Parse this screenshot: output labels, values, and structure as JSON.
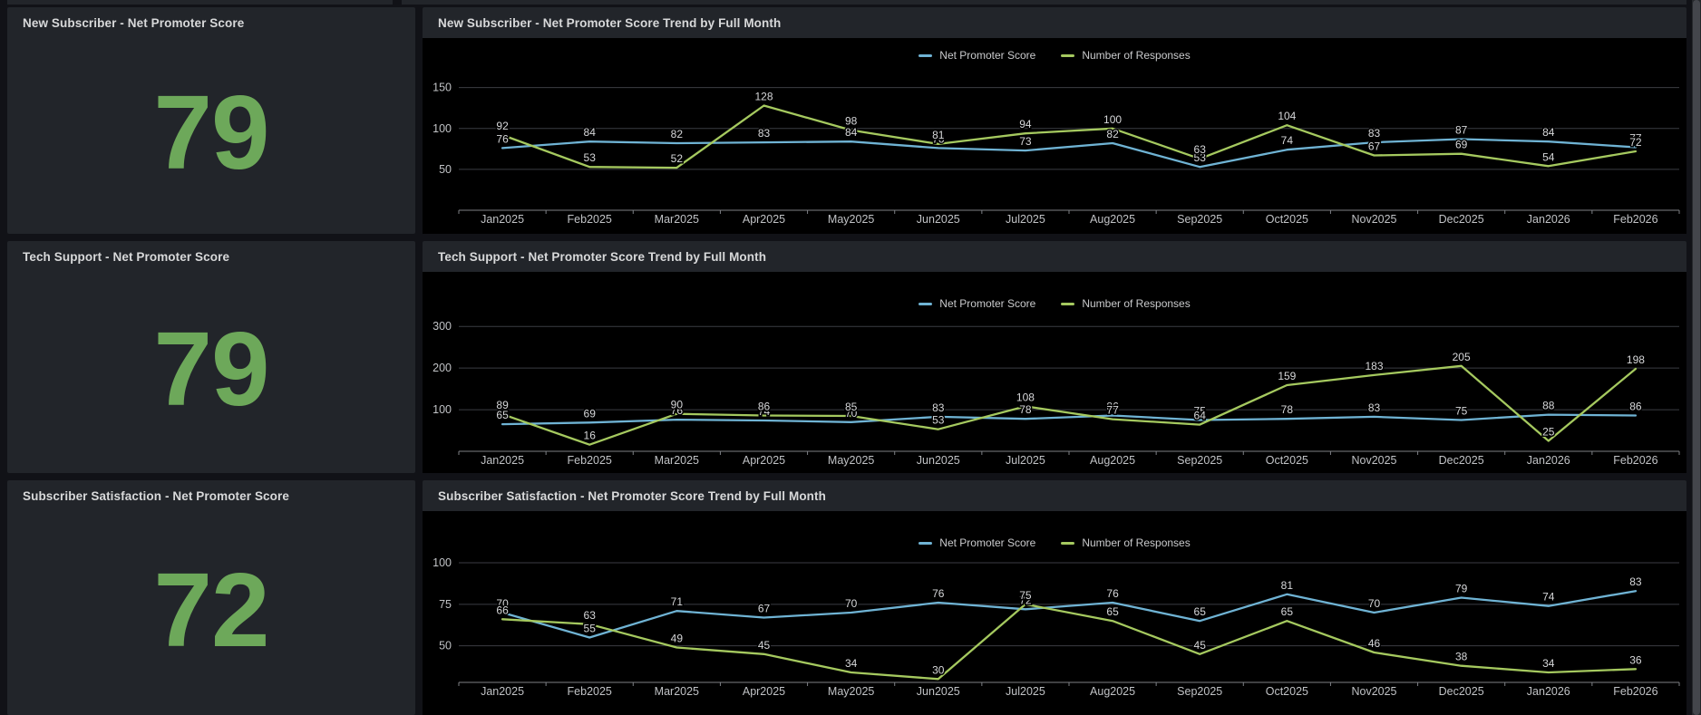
{
  "page": {
    "background": "#111217"
  },
  "colors": {
    "panel": "#22252a",
    "plot_background": "#000000",
    "stat_green": "#6da85a",
    "line_blue": "#6fb3d4",
    "line_green": "#a5c95f",
    "title_text": "#d8d9da",
    "axis_text": "#c0c2c5",
    "data_label_text": "#d6d7d9",
    "gridline": "#3b3d43",
    "axis_baseline": "#7e8085"
  },
  "rows": [
    {
      "stat": {
        "title": "New Subscriber - Net Promoter Score",
        "value": "79"
      },
      "trend": {
        "title": "New Subscriber - Net Promoter Score Trend by Full Month"
      }
    },
    {
      "stat": {
        "title": "Tech Support - Net Promoter Score",
        "value": "79"
      },
      "trend": {
        "title": "Tech Support - Net Promoter Score Trend by Full Month"
      }
    },
    {
      "stat": {
        "title": "Subscriber Satisfaction - Net Promoter Score",
        "value": "72"
      },
      "trend": {
        "title": "Subscriber Satisfaction - Net Promoter Score Trend by Full Month"
      }
    }
  ],
  "chart_data": [
    {
      "type": "line",
      "title": "New Subscriber - Net Promoter Score Trend by Full Month",
      "categories": [
        "Jan2025",
        "Feb2025",
        "Mar2025",
        "Apr2025",
        "May2025",
        "Jun2025",
        "Jul2025",
        "Aug2025",
        "Sep2025",
        "Oct2025",
        "Nov2025",
        "Dec2025",
        "Jan2026",
        "Feb2026"
      ],
      "series": [
        {
          "name": "Net Promoter Score",
          "color": "#6fb3d4",
          "values": [
            76,
            84,
            82,
            83,
            84,
            76,
            73,
            82,
            53,
            74,
            83,
            87,
            84,
            77
          ]
        },
        {
          "name": "Number of Responses",
          "color": "#a5c95f",
          "values": [
            92,
            53,
            52,
            128,
            98,
            81,
            94,
            100,
            63,
            104,
            67,
            69,
            54,
            72
          ]
        }
      ],
      "yticks": [
        50,
        100,
        150
      ],
      "ylim": [
        0,
        174
      ],
      "grid": true,
      "legend_position": "top",
      "data_labels": true
    },
    {
      "type": "line",
      "title": "Tech Support - Net Promoter Score Trend by Full Month",
      "categories": [
        "Jan2025",
        "Feb2025",
        "Mar2025",
        "Apr2025",
        "May2025",
        "Jun2025",
        "Jul2025",
        "Aug2025",
        "Sep2025",
        "Oct2025",
        "Nov2025",
        "Dec2025",
        "Jan2026",
        "Feb2026"
      ],
      "series": [
        {
          "name": "Net Promoter Score",
          "color": "#6fb3d4",
          "values": [
            65,
            69,
            76,
            74,
            70,
            83,
            78,
            86,
            75,
            78,
            83,
            75,
            88,
            86
          ]
        },
        {
          "name": "Number of Responses",
          "color": "#a5c95f",
          "values": [
            89,
            16,
            90,
            86,
            85,
            53,
            108,
            77,
            64,
            159,
            183,
            205,
            25,
            198
          ]
        }
      ],
      "yticks": [
        100,
        200,
        300
      ],
      "ylim": [
        0,
        320
      ],
      "grid": true,
      "legend_position": "top",
      "data_labels": true
    },
    {
      "type": "line",
      "title": "Subscriber Satisfaction - Net Promoter Score Trend by Full Month",
      "categories": [
        "Jan2025",
        "Feb2025",
        "Mar2025",
        "Apr2025",
        "May2025",
        "Jun2025",
        "Jul2025",
        "Aug2025",
        "Sep2025",
        "Oct2025",
        "Nov2025",
        "Dec2025",
        "Jan2026",
        "Feb2026"
      ],
      "series": [
        {
          "name": "Net Promoter Score",
          "color": "#6fb3d4",
          "values": [
            70,
            55,
            71,
            67,
            70,
            76,
            72,
            76,
            65,
            81,
            70,
            79,
            74,
            83
          ]
        },
        {
          "name": "Number of Responses",
          "color": "#a5c95f",
          "values": [
            66,
            63,
            49,
            45,
            34,
            30,
            75,
            65,
            45,
            65,
            46,
            38,
            34,
            36
          ]
        }
      ],
      "yticks": [
        50,
        75,
        100
      ],
      "ylim": [
        28,
        106
      ],
      "grid": true,
      "legend_position": "top",
      "data_labels": true
    }
  ]
}
